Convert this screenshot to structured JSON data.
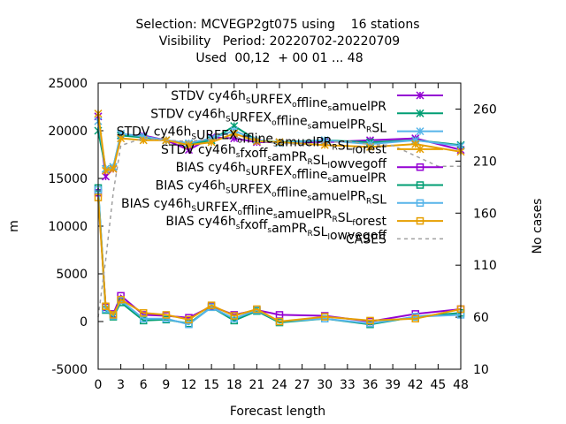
{
  "chart_data": {
    "type": "line",
    "title_lines": [
      "Selection: MCVEGP2gt075 using    16 stations",
      "Visibility   Period: 20220702-20220709",
      "Used  00,12  + 00 01 ... 48"
    ],
    "xlabel": "Forecast length",
    "ylabel": "m",
    "y2label": "No cases",
    "xlim": [
      0,
      48
    ],
    "ylim": [
      -5000,
      25000
    ],
    "y2lim": [
      10,
      285
    ],
    "xticks": [
      "0",
      "3",
      "6",
      "9",
      "12",
      "15",
      "18",
      "21",
      "24",
      "27",
      "30",
      "33",
      "36",
      "39",
      "42",
      "45",
      "48"
    ],
    "yticks": [
      "-5000",
      "0",
      "5000",
      "10000",
      "15000",
      "20000",
      "25000"
    ],
    "y2ticks": [
      "10",
      "60",
      "110",
      "160",
      "210",
      "260"
    ],
    "legend_position": "top-right",
    "x": [
      0,
      1,
      2,
      3,
      6,
      9,
      12,
      15,
      18,
      21,
      24,
      30,
      36,
      42,
      48
    ],
    "series": [
      {
        "name": "STDV cy46h_SURFEX_offline_samuelPR",
        "legend": [
          [
            "STDV cy46h",
            "S"
          ],
          [
            "URFEX",
            "o"
          ],
          [
            "ffline",
            "s"
          ],
          [
            "amuelPR",
            ""
          ]
        ],
        "color": "#9400d3",
        "marker": "x",
        "values": [
          21500,
          15200,
          16000,
          19500,
          19500,
          19000,
          18000,
          19300,
          19200,
          18800,
          18800,
          18800,
          19000,
          19200,
          18000
        ]
      },
      {
        "name": "STDV cy46h_SURFEX_offline_samuelPR_RSL",
        "legend": [
          [
            "STDV cy46h",
            "S"
          ],
          [
            "URFEX",
            "o"
          ],
          [
            "ffline",
            "s"
          ],
          [
            "amuelPR",
            "R"
          ],
          [
            "SL",
            ""
          ]
        ],
        "color": "#009e73",
        "marker": "x",
        "values": [
          20000,
          16000,
          16200,
          19500,
          19300,
          19000,
          18600,
          19000,
          20500,
          19000,
          18800,
          19000,
          18800,
          19000,
          18500
        ]
      },
      {
        "name": "STDV cy46h_SURFEX_offline_samuelPR_RSL_forest",
        "legend": [
          [
            "STDV cy46h",
            "S"
          ],
          [
            "URFEX",
            "o"
          ],
          [
            "ffline",
            "s"
          ],
          [
            "amuelPR",
            "R"
          ],
          [
            "SL",
            "f"
          ],
          [
            "orest",
            ""
          ]
        ],
        "color": "#56b4e9",
        "marker": "x",
        "values": [
          21000,
          16000,
          16200,
          19700,
          19400,
          19000,
          18700,
          19200,
          20000,
          19000,
          18700,
          19000,
          18600,
          19000,
          18400
        ]
      },
      {
        "name": "STDV cy46h_sfxoff_samPR_RSL_lowvegoff",
        "legend": [
          [
            "STDV cy46h",
            "s"
          ],
          [
            "fxoff",
            "s"
          ],
          [
            "amPR",
            "R"
          ],
          [
            "SL",
            "l"
          ],
          [
            "owvegoff",
            ""
          ]
        ],
        "color": "#e69f00",
        "marker": "x",
        "values": [
          21800,
          15800,
          16000,
          19200,
          19000,
          19000,
          18500,
          18800,
          19700,
          18900,
          18800,
          18500,
          18300,
          18600,
          17800
        ]
      },
      {
        "name": "BIAS cy46h_SURFEX_offline_samuelPR",
        "legend": [
          [
            "BIAS cy46h",
            "S"
          ],
          [
            "URFEX",
            "o"
          ],
          [
            "ffline",
            "s"
          ],
          [
            "amuelPR",
            ""
          ]
        ],
        "color": "#9400d3",
        "marker": "s",
        "values": [
          13500,
          1500,
          800,
          2700,
          700,
          600,
          400,
          1600,
          700,
          1200,
          700,
          600,
          0,
          800,
          1300
        ]
      },
      {
        "name": "BIAS cy46h_SURFEX_offline_samuelPR_RSL",
        "legend": [
          [
            "BIAS cy46h",
            "S"
          ],
          [
            "URFEX",
            "o"
          ],
          [
            "ffline",
            "s"
          ],
          [
            "amuelPR",
            "R"
          ],
          [
            "SL",
            ""
          ]
        ],
        "color": "#009e73",
        "marker": "s",
        "values": [
          14000,
          1200,
          500,
          2000,
          100,
          200,
          -200,
          1500,
          100,
          1100,
          -100,
          300,
          -300,
          500,
          900
        ]
      },
      {
        "name": "BIAS cy46h_SURFEX_offline_samuelPR_RSL_forest",
        "legend": [
          [
            "BIAS cy46h",
            "S"
          ],
          [
            "URFEX",
            "o"
          ],
          [
            "ffline",
            "s"
          ],
          [
            "amuelPR",
            "R"
          ],
          [
            "SL",
            "f"
          ],
          [
            "orest",
            ""
          ]
        ],
        "color": "#56b4e9",
        "marker": "s",
        "values": [
          13800,
          1300,
          600,
          2200,
          300,
          300,
          -300,
          1500,
          300,
          1200,
          0,
          300,
          -200,
          500,
          700
        ]
      },
      {
        "name": "BIAS cy46h_sfxoff_samPR_RSL_lowvegoff",
        "legend": [
          [
            "BIAS cy46h",
            "s"
          ],
          [
            "fxoff",
            "s"
          ],
          [
            "amPR",
            "R"
          ],
          [
            "SL",
            "l"
          ],
          [
            "owvegoff",
            ""
          ]
        ],
        "color": "#e69f00",
        "marker": "s",
        "values": [
          13000,
          1600,
          700,
          2300,
          900,
          700,
          200,
          1700,
          600,
          1300,
          0,
          500,
          100,
          300,
          1300
        ]
      },
      {
        "name": "CASES",
        "legend": [
          [
            "CASES",
            ""
          ]
        ],
        "color": "#a0a0a0",
        "marker": "none",
        "axis": "y2",
        "x": [
          0,
          1,
          2,
          3,
          6,
          9,
          12,
          15,
          18,
          21,
          24,
          27,
          30,
          33,
          36,
          39,
          42,
          45,
          48
        ],
        "values": [
          60,
          115,
          180,
          225,
          232,
          230,
          229,
          231,
          233,
          229,
          227,
          226,
          228,
          229,
          226,
          225,
          215,
          205,
          205
        ]
      }
    ]
  }
}
